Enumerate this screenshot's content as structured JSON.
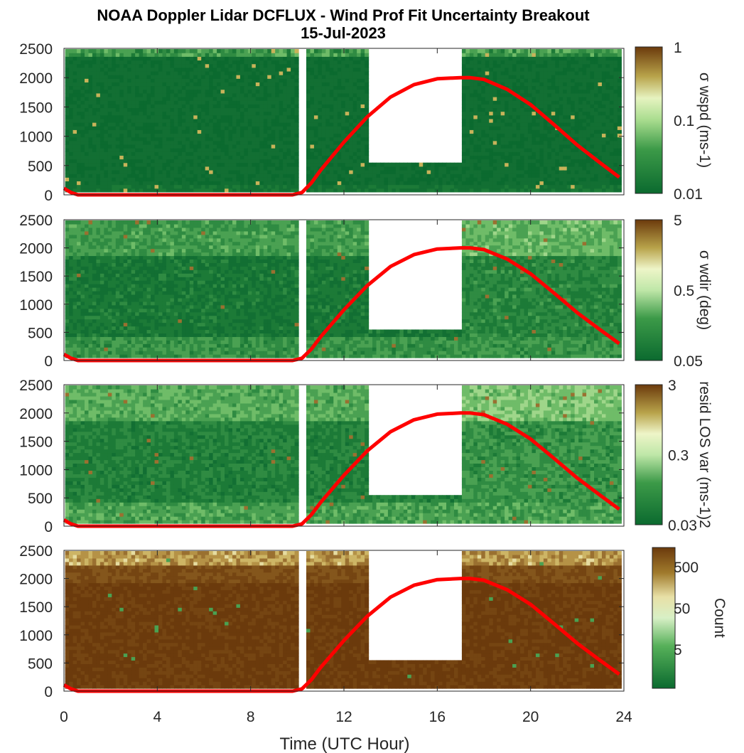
{
  "title": "NOAA Doppler Lidar DCFLUX - Wind Prof Fit Uncertainty Breakout",
  "subtitle": "15-Jul-2023",
  "xlabel": "Time (UTC Hour)",
  "colors": {
    "low": "#0b6a2f",
    "mid": "#d6efc4",
    "high": "#6b3a0c",
    "sun_line": "#ff0000"
  },
  "chart_data": [
    {
      "type": "heatmap",
      "panel": "wspd",
      "xlim": [
        0,
        24
      ],
      "ylim": [
        0,
        2500
      ],
      "x_ticks": [
        0,
        4,
        8,
        12,
        16,
        20,
        24
      ],
      "y_ticks": [
        0,
        500,
        1000,
        1500,
        2000,
        2500
      ],
      "colorbar_label": "σ wspd (ms-1)",
      "colorbar_ticks": [
        "0.01",
        "0.1",
        "1"
      ],
      "colorbar_scale": "log",
      "series": [
        {
          "type": "line",
          "color": "#ff0000"
        }
      ]
    },
    {
      "type": "heatmap",
      "panel": "wdir",
      "xlim": [
        0,
        24
      ],
      "ylim": [
        0,
        2500
      ],
      "x_ticks": [
        0,
        4,
        8,
        12,
        16,
        20,
        24
      ],
      "y_ticks": [
        0,
        500,
        1000,
        1500,
        2000,
        2500
      ],
      "colorbar_label": "σ wdir (deg)",
      "colorbar_ticks": [
        "0.05",
        "0.5",
        "5"
      ],
      "colorbar_scale": "log",
      "series": [
        {
          "type": "line",
          "color": "#ff0000"
        }
      ]
    },
    {
      "type": "heatmap",
      "panel": "resid",
      "xlim": [
        0,
        24
      ],
      "ylim": [
        0,
        2500
      ],
      "x_ticks": [
        0,
        4,
        8,
        12,
        16,
        20,
        24
      ],
      "y_ticks": [
        0,
        500,
        1000,
        1500,
        2000,
        2500
      ],
      "colorbar_label": "resid LOS var (ms-1)2",
      "colorbar_ticks": [
        "0.03",
        "0.3",
        "3"
      ],
      "colorbar_scale": "log",
      "series": [
        {
          "type": "line",
          "color": "#ff0000"
        }
      ]
    },
    {
      "type": "heatmap",
      "panel": "count",
      "xlim": [
        0,
        24
      ],
      "ylim": [
        0,
        2500
      ],
      "x_ticks": [
        0,
        4,
        8,
        12,
        16,
        20,
        24
      ],
      "y_ticks": [
        0,
        500,
        1000,
        1500,
        2000,
        2500
      ],
      "colorbar_label": "Count",
      "colorbar_ticks": [
        "5",
        "50",
        "500"
      ],
      "colorbar_scale": "log",
      "series": [
        {
          "type": "line",
          "color": "#ff0000"
        }
      ]
    }
  ],
  "sun_elevation_line": {
    "x": [
      0,
      0.3,
      0.6,
      1,
      2,
      3,
      4,
      5,
      6,
      7,
      8,
      9,
      9.8,
      10.2,
      10.6,
      11,
      12,
      13,
      14,
      15,
      16,
      17,
      17.4,
      18,
      19,
      20,
      21,
      22,
      23,
      23.8
    ],
    "y": [
      110,
      40,
      0,
      0,
      0,
      0,
      0,
      0,
      0,
      0,
      0,
      0,
      0,
      40,
      200,
      420,
      900,
      1330,
      1670,
      1880,
      1980,
      2000,
      2000,
      1970,
      1800,
      1540,
      1200,
      850,
      540,
      300
    ]
  },
  "gap_periods": [
    {
      "x": [
        10.0,
        10.3
      ],
      "ylim": [
        0,
        2500
      ]
    },
    {
      "x": [
        13.0,
        17.0
      ],
      "ylim": [
        500,
        2500
      ]
    }
  ]
}
